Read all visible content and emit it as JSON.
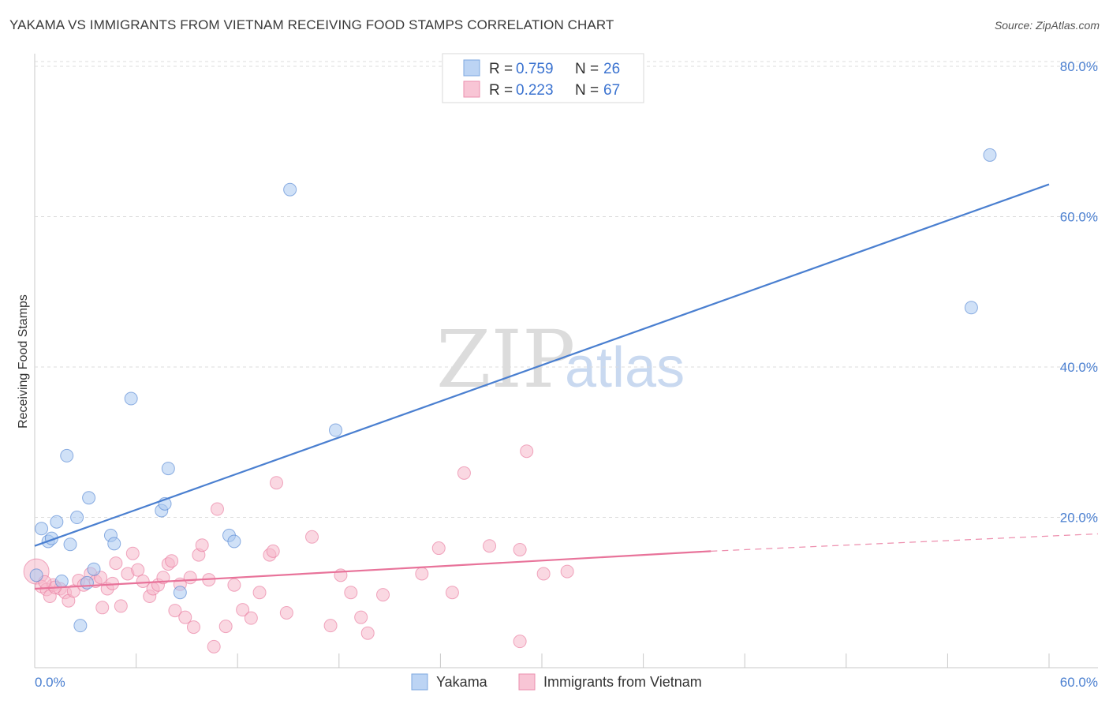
{
  "title": "YAKAMA VS IMMIGRANTS FROM VIETNAM RECEIVING FOOD STAMPS CORRELATION CHART",
  "source": "Source: ZipAtlas.com",
  "watermark": {
    "zip": "ZIP",
    "atlas": "atlas"
  },
  "chart_data": {
    "type": "scatter",
    "title": "YAKAMA VS IMMIGRANTS FROM VIETNAM RECEIVING FOOD STAMPS CORRELATION CHART",
    "xlabel": "",
    "ylabel": "Receiving Food Stamps",
    "xlim": [
      0,
      60
    ],
    "ylim": [
      0,
      82
    ],
    "x_tick_labels": [
      "0.0%",
      "60.0%"
    ],
    "y_ticks": [
      20,
      40,
      60,
      80
    ],
    "y_tick_labels": [
      "20.0%",
      "40.0%",
      "60.0%",
      "80.0%"
    ],
    "grid": true,
    "legend": {
      "placement": "top-center",
      "entries": [
        {
          "r_label": "R =",
          "r": "0.759",
          "n_label": "N =",
          "n": "26"
        },
        {
          "r_label": "R =",
          "r": "0.223",
          "n_label": "N =",
          "n": "67"
        }
      ]
    },
    "series": [
      {
        "name": "Yakama",
        "color": "#4a7fd0",
        "fill": "#a9c8f0",
        "trend": {
          "x": [
            0,
            60
          ],
          "y": [
            16.2,
            64.3
          ],
          "style": "solid"
        },
        "points": [
          [
            0.4,
            18.5
          ],
          [
            0.8,
            16.8
          ],
          [
            1.0,
            17.2
          ],
          [
            1.3,
            19.4
          ],
          [
            1.6,
            11.5
          ],
          [
            1.9,
            28.2
          ],
          [
            2.1,
            16.4
          ],
          [
            2.5,
            20.0
          ],
          [
            2.7,
            5.6
          ],
          [
            3.1,
            11.3
          ],
          [
            3.2,
            22.6
          ],
          [
            3.5,
            13.1
          ],
          [
            4.5,
            17.6
          ],
          [
            4.7,
            16.5
          ],
          [
            5.7,
            35.8
          ],
          [
            7.5,
            20.9
          ],
          [
            7.7,
            21.8
          ],
          [
            7.9,
            26.5
          ],
          [
            8.6,
            10.0
          ],
          [
            11.5,
            17.6
          ],
          [
            11.8,
            16.8
          ],
          [
            15.1,
            63.6
          ],
          [
            17.8,
            31.6
          ],
          [
            56.5,
            68.2
          ],
          [
            55.4,
            47.9
          ],
          [
            0.1,
            12.3
          ]
        ]
      },
      {
        "name": "Immigrants from Vietnam",
        "color": "#e8739a",
        "fill": "#f5b8cb",
        "trend": {
          "x": [
            0,
            40
          ],
          "y": [
            10.5,
            15.5
          ],
          "x_dashed_to": 60,
          "y_dashed_to": 17.8,
          "style": "solid-then-dashed"
        },
        "points": [
          [
            0.1,
            12.8
          ],
          [
            0.4,
            10.8
          ],
          [
            0.7,
            10.4
          ],
          [
            0.9,
            9.5
          ],
          [
            1.1,
            11.0
          ],
          [
            1.5,
            10.5
          ],
          [
            1.8,
            10.0
          ],
          [
            2.0,
            8.9
          ],
          [
            2.3,
            10.2
          ],
          [
            2.6,
            11.6
          ],
          [
            2.9,
            11.0
          ],
          [
            3.3,
            12.5
          ],
          [
            3.6,
            11.5
          ],
          [
            3.9,
            12.0
          ],
          [
            4.3,
            10.5
          ],
          [
            4.6,
            11.2
          ],
          [
            4.8,
            13.9
          ],
          [
            5.1,
            8.2
          ],
          [
            5.5,
            12.5
          ],
          [
            5.8,
            15.2
          ],
          [
            6.1,
            13.0
          ],
          [
            6.4,
            11.5
          ],
          [
            6.8,
            9.5
          ],
          [
            7.0,
            10.5
          ],
          [
            7.3,
            11.0
          ],
          [
            7.6,
            12.0
          ],
          [
            7.9,
            13.8
          ],
          [
            8.1,
            14.2
          ],
          [
            8.3,
            7.6
          ],
          [
            8.6,
            11.1
          ],
          [
            8.9,
            6.7
          ],
          [
            9.2,
            12.0
          ],
          [
            9.4,
            5.4
          ],
          [
            9.7,
            15.0
          ],
          [
            9.9,
            16.3
          ],
          [
            10.3,
            11.7
          ],
          [
            10.6,
            2.8
          ],
          [
            10.8,
            21.1
          ],
          [
            11.3,
            5.5
          ],
          [
            11.8,
            11.0
          ],
          [
            12.3,
            7.7
          ],
          [
            12.8,
            6.6
          ],
          [
            13.3,
            10.0
          ],
          [
            13.9,
            15.0
          ],
          [
            14.1,
            15.5
          ],
          [
            14.3,
            24.6
          ],
          [
            14.9,
            7.3
          ],
          [
            16.4,
            17.4
          ],
          [
            17.5,
            5.6
          ],
          [
            18.1,
            12.3
          ],
          [
            18.7,
            10.0
          ],
          [
            19.3,
            6.7
          ],
          [
            19.7,
            4.6
          ],
          [
            20.6,
            9.7
          ],
          [
            22.9,
            12.5
          ],
          [
            23.9,
            15.9
          ],
          [
            24.7,
            10.0
          ],
          [
            25.4,
            25.9
          ],
          [
            26.9,
            16.2
          ],
          [
            28.7,
            15.7
          ],
          [
            28.7,
            3.5
          ],
          [
            29.1,
            28.8
          ],
          [
            30.1,
            12.5
          ],
          [
            31.5,
            12.8
          ],
          [
            1.2,
            10.7
          ],
          [
            0.6,
            11.4
          ],
          [
            4.0,
            8.0
          ]
        ]
      }
    ]
  }
}
